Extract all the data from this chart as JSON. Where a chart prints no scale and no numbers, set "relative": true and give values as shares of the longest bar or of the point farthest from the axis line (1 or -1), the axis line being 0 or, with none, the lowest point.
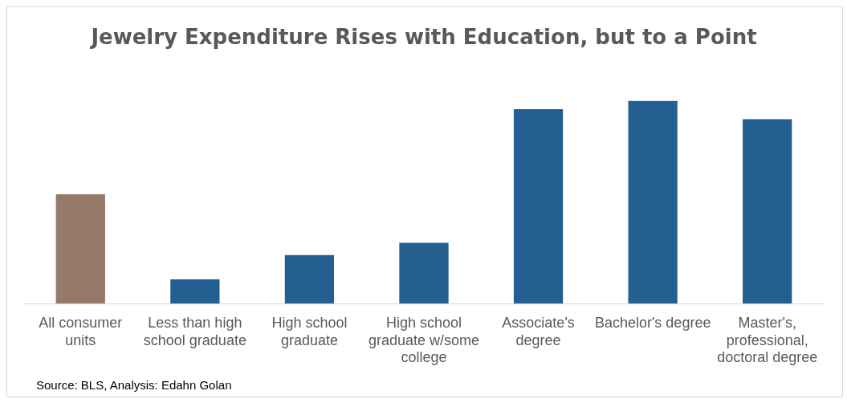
{
  "chart_data": {
    "type": "bar",
    "title": "Jewelry Expenditure Rises with Education, but to a Point",
    "categories": [
      "All consumer units",
      "Less than high school graduate",
      "High school graduate",
      "High school graduate w/some college",
      "Associate's degree",
      "Bachelor's degree",
      "Master's, professional, doctoral degree"
    ],
    "values": [
      0.54,
      0.12,
      0.24,
      0.3,
      0.96,
      1,
      0.91
    ],
    "colors": [
      "#957a6a",
      "#245f91",
      "#245f91",
      "#245f91",
      "#245f91",
      "#245f91",
      "#245f91"
    ],
    "relative": true,
    "grid": false,
    "legend": false,
    "annotations": [
      "Source: BLS, Analysis: Edahn Golan"
    ]
  }
}
